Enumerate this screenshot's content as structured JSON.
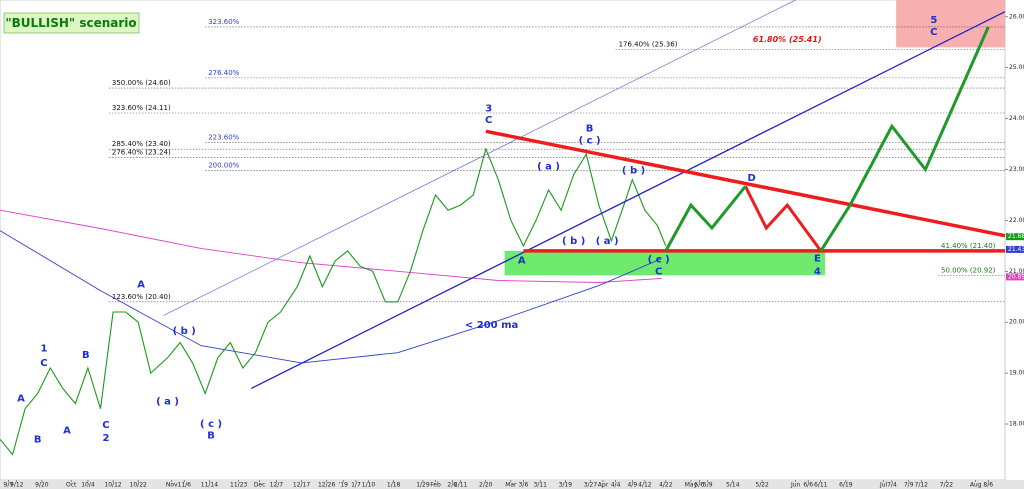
{
  "chart_data": {
    "type": "candlestick-projection",
    "title": "\"BULLISH\" scenario",
    "xlim": [
      0,
      240
    ],
    "ylim": [
      16.9,
      26.33
    ],
    "yticks": [
      {
        "value": 18,
        "label": "18.00"
      },
      {
        "value": 19,
        "label": "19.00"
      },
      {
        "value": 20,
        "label": "20.00"
      },
      {
        "value": 21,
        "label": "21.00"
      },
      {
        "value": 22,
        "label": "22.00"
      },
      {
        "value": 23,
        "label": "23.00"
      },
      {
        "value": 24,
        "label": "24.00"
      },
      {
        "value": 25,
        "label": "25.00"
      },
      {
        "value": 26,
        "label": "26.00"
      }
    ],
    "xticks": [
      {
        "value": 2,
        "label": "9/7"
      },
      {
        "value": 4,
        "label": "9/12"
      },
      {
        "value": 10,
        "label": "9/20"
      },
      {
        "value": 17,
        "label": "Oct"
      },
      {
        "value": 21,
        "label": "10/4"
      },
      {
        "value": 27,
        "label": "10/12"
      },
      {
        "value": 33,
        "label": "10/22"
      },
      {
        "value": 41,
        "label": "Nov"
      },
      {
        "value": 44,
        "label": "11/6"
      },
      {
        "value": 50,
        "label": "11/14"
      },
      {
        "value": 57,
        "label": "11/23"
      },
      {
        "value": 62,
        "label": "Dec"
      },
      {
        "value": 66,
        "label": "12/7"
      },
      {
        "value": 72,
        "label": "12/17"
      },
      {
        "value": 78,
        "label": "12/26"
      },
      {
        "value": 82,
        "label": "'19"
      },
      {
        "value": 85,
        "label": "1/7"
      },
      {
        "value": 88,
        "label": "1/10"
      },
      {
        "value": 94,
        "label": "1/18"
      },
      {
        "value": 101,
        "label": "1/29"
      },
      {
        "value": 104,
        "label": "Feb"
      },
      {
        "value": 108,
        "label": "2/6"
      },
      {
        "value": 110,
        "label": "2/11"
      },
      {
        "value": 116,
        "label": "2/20"
      },
      {
        "value": 122,
        "label": "Mar"
      },
      {
        "value": 125,
        "label": "3/6"
      },
      {
        "value": 129,
        "label": "3/11"
      },
      {
        "value": 135,
        "label": "3/19"
      },
      {
        "value": 141,
        "label": "3/27"
      },
      {
        "value": 144,
        "label": "Apr"
      },
      {
        "value": 147,
        "label": "4/4"
      },
      {
        "value": 151,
        "label": "4/9"
      },
      {
        "value": 154,
        "label": "4/12"
      },
      {
        "value": 159,
        "label": "4/22"
      },
      {
        "value": 165,
        "label": "May"
      },
      {
        "value": 167,
        "label": "5/6"
      },
      {
        "value": 169,
        "label": "5/9"
      },
      {
        "value": 175,
        "label": "5/14"
      },
      {
        "value": 182,
        "label": "5/22"
      },
      {
        "value": 190,
        "label": "Jun"
      },
      {
        "value": 193,
        "label": "6/6"
      },
      {
        "value": 196,
        "label": "6/11"
      },
      {
        "value": 202,
        "label": "6/19"
      },
      {
        "value": 211,
        "label": "Jul"
      },
      {
        "value": 213,
        "label": "7/4"
      },
      {
        "value": 217,
        "label": "7/9"
      },
      {
        "value": 220,
        "label": "7/12"
      },
      {
        "value": 226,
        "label": "7/22"
      },
      {
        "value": 233,
        "label": "Aug"
      },
      {
        "value": 236,
        "label": "8/6"
      }
    ],
    "price": {
      "color": "#1a9a1a",
      "x": [
        0,
        3,
        6,
        9,
        12,
        15,
        18,
        21,
        24,
        27,
        30,
        33,
        36,
        40,
        43,
        46,
        49,
        52,
        55,
        58,
        61,
        64,
        67,
        71,
        74,
        77,
        80,
        83,
        86,
        89,
        92,
        95,
        98,
        101,
        104,
        107,
        110,
        113,
        116,
        119,
        122,
        125,
        128,
        131,
        134,
        137,
        140,
        143,
        146,
        149,
        151,
        154,
        157,
        159
      ],
      "values": [
        17.7,
        17.4,
        18.3,
        18.6,
        19.1,
        18.7,
        18.4,
        19.1,
        18.3,
        20.2,
        20.2,
        20.0,
        19.0,
        19.3,
        19.6,
        19.2,
        18.6,
        19.3,
        19.6,
        19.1,
        19.4,
        20.0,
        20.2,
        20.7,
        21.3,
        20.7,
        21.2,
        21.4,
        21.1,
        21.0,
        20.4,
        20.4,
        21.0,
        21.8,
        22.5,
        22.2,
        22.3,
        22.5,
        23.4,
        22.8,
        22.0,
        21.5,
        22.0,
        22.6,
        22.2,
        22.9,
        23.3,
        22.3,
        21.6,
        22.3,
        22.8,
        22.2,
        21.9,
        21.5
      ]
    },
    "moving_averages": [
      {
        "color": "#e040c8",
        "x": [
          0,
          24,
          48,
          72,
          95,
          119,
          143,
          158
        ],
        "values": [
          22.2,
          21.84,
          21.45,
          21.17,
          21.0,
          20.82,
          20.78,
          20.86
        ]
      },
      {
        "color": "#3040d0",
        "x": [
          0,
          24,
          48,
          72,
          95,
          119,
          143,
          158
        ],
        "values": [
          21.8,
          20.62,
          19.54,
          19.2,
          19.4,
          20.03,
          20.72,
          21.25
        ]
      }
    ],
    "zones": [
      {
        "color": "#5ee85e",
        "x": [
          120.5,
          197
        ],
        "y": [
          20.92,
          21.4
        ]
      },
      {
        "color": "#f7a6a6",
        "x": [
          214,
          240
        ],
        "y": [
          25.4,
          26.33
        ]
      }
    ],
    "lines": [
      {
        "color": "#2020c8",
        "width": 1.3,
        "x": [
          60,
          240
        ],
        "values": [
          18.7,
          26.1
        ]
      },
      {
        "color": "#6a70e0",
        "width": 0.7,
        "x": [
          39,
          190
        ],
        "values": [
          20.13,
          26.33
        ]
      },
      {
        "color": "#ee1c1c",
        "width": 3.5,
        "x": [
          116,
          240
        ],
        "values": [
          23.75,
          21.7
        ]
      },
      {
        "color": "#ee1c1c",
        "width": 3.5,
        "x": [
          125,
          240
        ],
        "values": [
          21.4,
          21.4
        ]
      },
      {
        "color": "#ee1c1c",
        "width": 3,
        "x": [
          178,
          183,
          188,
          196
        ],
        "values": [
          22.67,
          21.85,
          22.3,
          21.4
        ]
      },
      {
        "color": "#1e9a2a",
        "width": 3,
        "x": [
          159,
          165,
          170,
          178
        ],
        "values": [
          21.4,
          22.3,
          21.85,
          22.67
        ]
      },
      {
        "color": "#1e9a2a",
        "width": 3,
        "x": [
          196,
          203,
          213,
          221,
          236
        ],
        "values": [
          21.4,
          22.3,
          23.85,
          23.0,
          25.8
        ]
      }
    ],
    "levels": [
      {
        "label": "323.60%",
        "value": 25.8,
        "start": 49,
        "color": "#3040d0"
      },
      {
        "label": "176.40% (25.36)",
        "value": 25.36,
        "start": 147,
        "color": "#111111"
      },
      {
        "label": "350.00% (24.60)",
        "value": 24.6,
        "start": 26,
        "color": "#111111"
      },
      {
        "label": "276.40%",
        "value": 24.8,
        "start": 49,
        "color": "#3040d0"
      },
      {
        "label": "323.60% (24.11)",
        "value": 24.11,
        "start": 26,
        "color": "#111111"
      },
      {
        "label": "223.60%",
        "value": 23.53,
        "start": 49,
        "color": "#3040d0"
      },
      {
        "label": "285.40% (23.40)",
        "value": 23.4,
        "start": 26,
        "color": "#111111"
      },
      {
        "label": "276.40% (23.24)",
        "value": 23.24,
        "start": 26,
        "color": "#111111"
      },
      {
        "label": "200.00%",
        "value": 22.98,
        "start": 49,
        "color": "#3040d0"
      },
      {
        "label": "41.40% (21.40)",
        "value": 21.4,
        "start": 224,
        "color": "#1a7a1a"
      },
      {
        "label": "50.00% (20.92)",
        "value": 20.92,
        "start": 224,
        "color": "#1a7a1a"
      },
      {
        "label": "123.60% (20.40)",
        "value": 20.4,
        "start": 26,
        "color": "#111111"
      }
    ],
    "annotations": [
      {
        "text": "61.80% (25.41)",
        "x": 188,
        "y": 25.55,
        "color": "#e01818"
      },
      {
        "text": "A",
        "x": 5,
        "y": 18.5
      },
      {
        "text": "B",
        "x": 9,
        "y": 17.7
      },
      {
        "text": "1",
        "x": 10.5,
        "y": 19.48
      },
      {
        "text": "C",
        "x": 10.5,
        "y": 19.2
      },
      {
        "text": "A",
        "x": 16,
        "y": 17.87
      },
      {
        "text": "B",
        "x": 20.5,
        "y": 19.36
      },
      {
        "text": "C",
        "x": 25.3,
        "y": 17.98
      },
      {
        "text": "2",
        "x": 25.3,
        "y": 17.73
      },
      {
        "text": "A",
        "x": 33.7,
        "y": 20.74
      },
      {
        "text": "( b )",
        "x": 44,
        "y": 19.83
      },
      {
        "text": "( a )",
        "x": 40,
        "y": 18.44
      },
      {
        "text": "( c )",
        "x": 50.4,
        "y": 18.0
      },
      {
        "text": "B",
        "x": 50.4,
        "y": 17.77
      },
      {
        "text": "3",
        "x": 116.7,
        "y": 24.2
      },
      {
        "text": "C",
        "x": 116.7,
        "y": 23.97
      },
      {
        "text": "B",
        "x": 140.8,
        "y": 23.81
      },
      {
        "text": "( c )",
        "x": 140.8,
        "y": 23.57
      },
      {
        "text": "( a )",
        "x": 131,
        "y": 23.06
      },
      {
        "text": "( b )",
        "x": 151.3,
        "y": 22.98
      },
      {
        "text": "( b )",
        "x": 137,
        "y": 21.6
      },
      {
        "text": "( a )",
        "x": 145,
        "y": 21.6
      },
      {
        "text": "A",
        "x": 124.6,
        "y": 21.21
      },
      {
        "text": "( c )",
        "x": 157.3,
        "y": 21.23
      },
      {
        "text": "C",
        "x": 157.3,
        "y": 21.0
      },
      {
        "text": "D",
        "x": 179.5,
        "y": 22.83
      },
      {
        "text": "E",
        "x": 195.2,
        "y": 21.25
      },
      {
        "text": "4",
        "x": 195.2,
        "y": 21.0
      },
      {
        "text": "5",
        "x": 223,
        "y": 25.94
      },
      {
        "text": "C",
        "x": 223,
        "y": 25.7
      },
      {
        "text": "< 200 ma",
        "x": 117.4,
        "y": 19.95
      }
    ],
    "price_tags": [
      {
        "value": 21.68,
        "label": "21.68",
        "color": "#1a9a1a"
      },
      {
        "value": 21.43,
        "label": "21.43",
        "color": "#3040d0"
      },
      {
        "value": 20.89,
        "label": "20.89",
        "color": "#e040c8"
      }
    ]
  }
}
